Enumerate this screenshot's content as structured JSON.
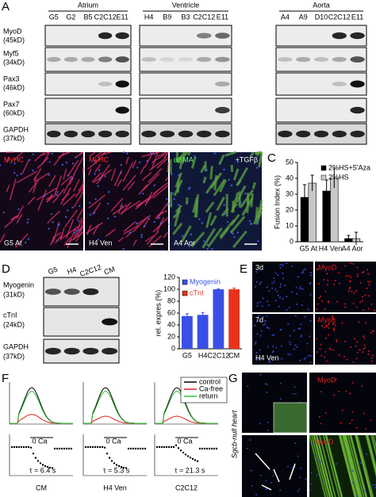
{
  "panel_labels": [
    "A",
    "B",
    "C",
    "D",
    "E",
    "F",
    "G"
  ],
  "panel_a": {
    "groups": [
      {
        "name": "Atrium",
        "lanes": [
          "G5",
          "G2",
          "B5",
          "C2C12",
          "E11"
        ]
      },
      {
        "name": "Ventricle",
        "lanes": [
          "H4",
          "B9",
          "B3",
          "C2C12",
          "E11"
        ]
      },
      {
        "name": "Aorta",
        "lanes": [
          "A4",
          "A9",
          "D10",
          "C2C12",
          "E11"
        ]
      }
    ],
    "rows": [
      {
        "protein": "MyoD",
        "size": "(45kD)"
      },
      {
        "protein": "Myf5",
        "size": "(34kD)"
      },
      {
        "protein": "Pax3",
        "size": "(46kD)"
      },
      {
        "protein": "Pax7",
        "size": "(60kD)"
      },
      {
        "protein": "GAPDH",
        "size": "(37kD)"
      }
    ]
  },
  "panel_b": {
    "images": [
      {
        "stain": "MyHC",
        "label": "G5 At"
      },
      {
        "stain": "MyHC",
        "label": "H4 Ven"
      },
      {
        "stain": "αSMA",
        "extra": "+TGFβ",
        "label": "A4 Aor"
      }
    ]
  },
  "panel_d_blot": {
    "lanes": [
      "G5",
      "H4",
      "C2C12",
      "CM"
    ],
    "rows": [
      {
        "protein": "Myogenin",
        "size": "(31kD)"
      },
      {
        "protein": "cTnI",
        "size": "(24kD)"
      },
      {
        "protein": "GAPDH",
        "size": "(37kD)"
      }
    ]
  },
  "chart_data": [
    {
      "type": "bar",
      "ylabel": "Fusion Index (%)",
      "categories": [
        "G5 At",
        "H4 Ven",
        "A4 Aor"
      ],
      "series": [
        {
          "name": "2%HS+5'Aza",
          "color": "#000000",
          "values": [
            28,
            32,
            2
          ],
          "errors": [
            8,
            7,
            2
          ]
        },
        {
          "name": "2%HS",
          "color": "#c8c8c8",
          "values": [
            37,
            40,
            2
          ],
          "errors": [
            5,
            6,
            4
          ]
        }
      ],
      "ylim": [
        0,
        50
      ],
      "yticks": [
        0,
        10,
        20,
        30,
        40,
        50
      ],
      "legend": "upper right"
    },
    {
      "type": "bar",
      "ylabel": "rel. expres.(%)",
      "categories": [
        "G5",
        "H4",
        "C2C12",
        "CM"
      ],
      "series": [
        {
          "name": "Myogenin",
          "color": "#3a4fe6",
          "values": [
            55,
            57,
            100,
            null
          ],
          "errors": [
            4,
            4,
            1,
            null
          ]
        },
        {
          "name": "cTnI",
          "color": "#e8321e",
          "values": [
            null,
            null,
            null,
            100
          ],
          "errors": [
            null,
            null,
            null,
            2
          ]
        }
      ],
      "ylim": [
        0,
        120
      ],
      "yticks": [
        0,
        20,
        40,
        60,
        80,
        100,
        120
      ],
      "legend": "upper left"
    }
  ],
  "panel_e": {
    "images": [
      "3d",
      "MyoD",
      "7d",
      "Myog"
    ],
    "caption": "H4 Ven"
  },
  "panel_f": {
    "columns": [
      "CM",
      "H4 Ven",
      "C2C12"
    ],
    "taus": [
      "τ = 6.4 s",
      "τ = 5.3 s",
      "τ = 21.3 s"
    ],
    "annotation": "0 Ca",
    "legend": [
      "control",
      "Ca-free",
      "return"
    ]
  },
  "panel_g": {
    "side_label": "Sgcb-null heart",
    "stains": [
      "MyoD",
      "MyoD"
    ]
  }
}
